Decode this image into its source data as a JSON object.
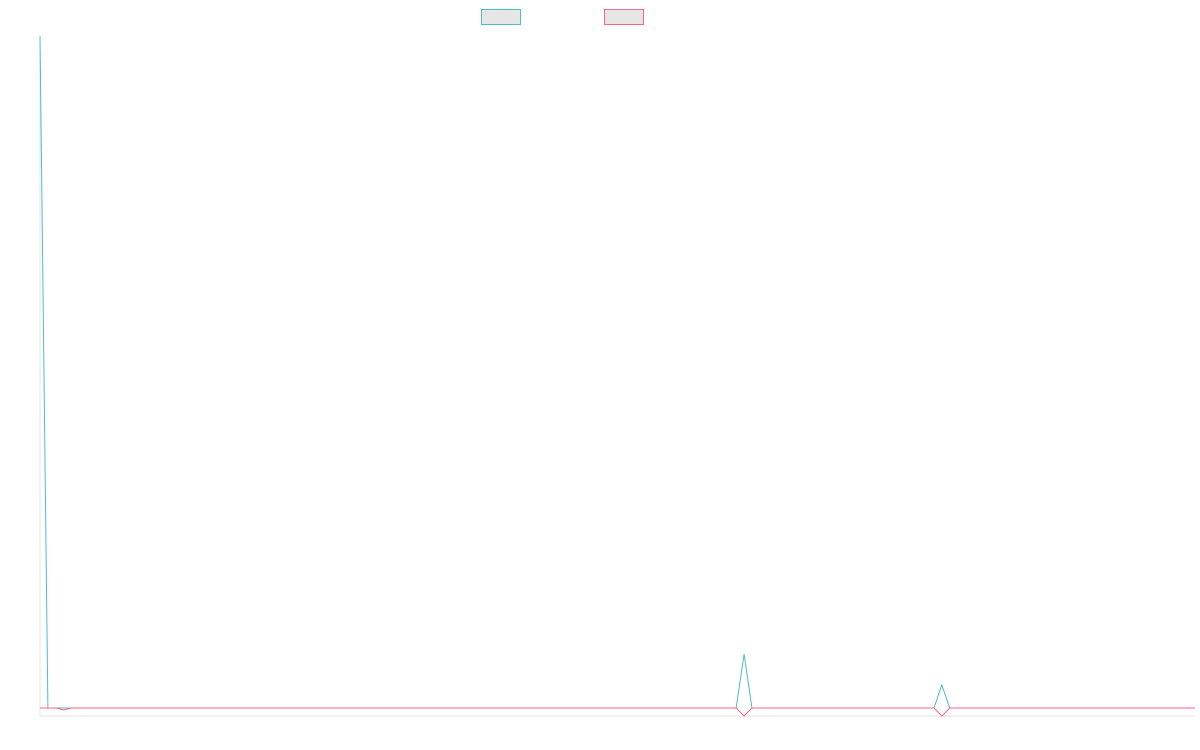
{
  "chart_data": {
    "type": "line",
    "x": [
      1,
      2,
      3,
      4,
      5,
      6,
      7,
      8,
      9,
      10,
      11,
      12,
      13,
      14,
      15,
      16,
      17,
      18,
      19,
      20,
      21,
      22,
      23,
      24,
      25,
      26,
      27,
      28,
      29,
      30,
      31,
      32,
      33,
      34,
      35,
      36,
      37,
      38,
      39,
      40,
      41,
      42,
      43,
      44,
      45,
      46,
      47,
      48,
      49,
      50,
      51,
      52,
      53,
      54,
      55,
      56,
      57,
      58,
      59,
      60,
      61,
      62,
      63,
      64,
      65,
      66,
      67,
      68,
      69,
      70,
      71,
      72,
      73,
      74,
      75,
      76,
      77,
      78,
      79,
      80,
      81,
      82,
      83,
      84,
      85,
      86,
      87,
      88,
      89,
      90,
      91,
      92,
      93,
      94,
      95,
      96,
      97,
      98,
      99,
      100,
      101,
      102,
      103,
      104,
      105,
      106,
      107,
      108,
      109,
      110,
      111,
      112,
      113,
      114,
      115,
      116,
      117,
      118,
      119,
      120,
      121,
      122,
      123,
      124,
      125,
      126,
      127,
      128,
      129,
      130,
      131,
      132,
      133,
      134,
      135,
      136,
      137,
      138,
      139,
      140,
      141,
      142,
      143,
      144,
      145,
      146,
      147
    ],
    "series": [
      {
        "color": "#4bc0c0",
        "values": [
          100,
          0,
          0,
          0,
          0,
          0,
          0,
          0,
          0,
          0,
          0,
          0,
          0,
          0,
          0,
          0,
          0,
          0,
          0,
          0,
          0,
          0,
          0,
          0,
          0,
          0,
          0,
          0,
          0,
          0,
          0,
          0,
          0,
          0,
          0,
          0,
          0,
          0,
          0,
          0,
          0,
          0,
          0,
          0,
          0,
          0,
          0,
          0,
          0,
          0,
          0,
          0,
          0,
          0,
          0,
          0,
          0,
          0,
          0,
          0,
          0,
          0,
          0,
          0,
          0,
          0,
          0,
          0,
          0,
          0,
          0,
          0,
          0,
          0,
          0,
          0,
          0,
          0,
          0,
          0,
          0,
          0,
          0,
          0,
          0,
          0,
          0,
          0,
          0,
          8,
          0,
          0,
          0,
          0,
          0,
          0,
          0,
          0,
          0,
          0,
          0,
          0,
          0,
          0,
          0,
          0,
          0,
          0,
          0,
          0,
          0,
          0,
          0,
          0,
          3.4,
          0,
          0,
          0,
          0,
          0,
          0,
          0,
          0,
          0,
          0,
          0,
          0,
          0,
          0,
          0,
          0,
          0,
          0,
          0,
          0,
          0,
          0,
          0,
          0,
          0,
          0,
          0,
          0,
          0,
          0,
          0,
          0
        ]
      },
      {
        "color": "#ff6384",
        "values": [
          0,
          0,
          0,
          -0.3,
          0,
          0,
          0,
          0,
          0,
          0,
          0,
          0,
          0,
          0,
          0,
          0,
          0,
          0,
          0,
          0,
          0,
          0,
          0,
          0,
          0,
          0,
          0,
          0,
          0,
          0,
          0,
          0,
          0,
          0,
          0,
          0,
          0,
          0,
          0,
          0,
          0,
          0,
          0,
          0,
          0,
          0,
          0,
          0,
          0,
          0,
          0,
          0,
          0,
          0,
          0,
          0,
          0,
          0,
          0,
          0,
          0,
          0,
          0,
          0,
          0,
          0,
          0,
          0,
          0,
          0,
          0,
          0,
          0,
          0,
          0,
          0,
          0,
          0,
          0,
          0,
          0,
          0,
          0,
          0,
          0,
          0,
          0,
          0,
          0,
          -1.2,
          0,
          0,
          0,
          0,
          0,
          0,
          0,
          0,
          0,
          0,
          0,
          0,
          0,
          0,
          0,
          0,
          0,
          0,
          0,
          0,
          0,
          0,
          0,
          0,
          -1.2,
          0,
          0,
          0,
          0,
          0,
          0,
          0,
          0,
          0,
          0,
          0,
          0,
          0,
          0,
          0,
          0,
          0,
          0,
          0,
          0,
          0,
          0,
          0,
          0,
          0,
          0,
          0,
          0,
          0,
          0,
          0,
          0
        ]
      }
    ],
    "ylim": [
      -1.2,
      100
    ],
    "grid": false,
    "legend": "top-center",
    "axis_color": "#e5e5e5",
    "legend_fill": "#e6e6e6"
  }
}
